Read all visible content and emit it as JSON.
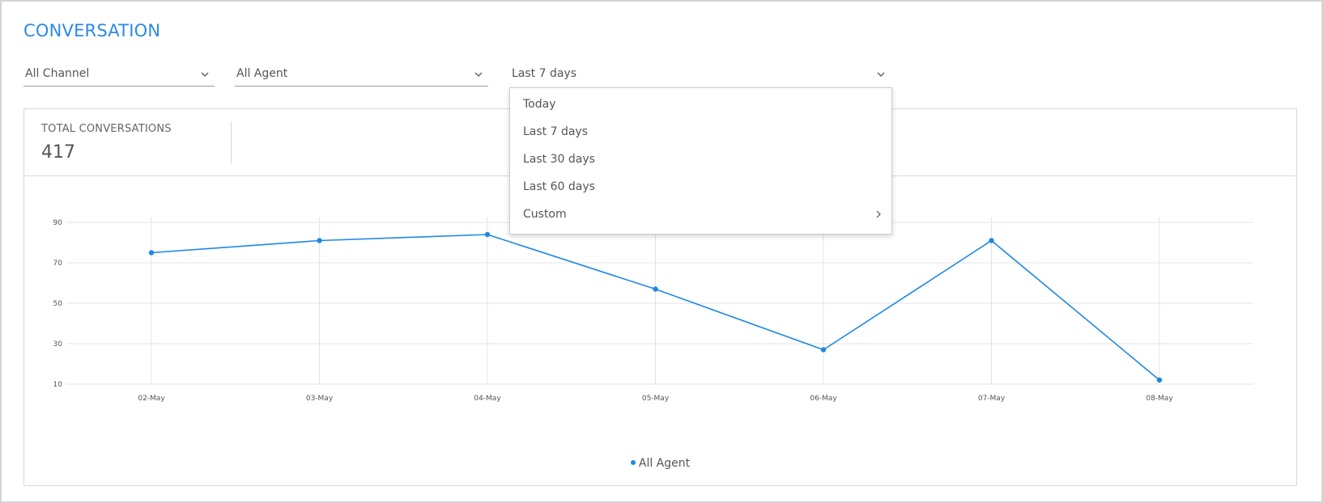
{
  "header": {
    "title": "CONVERSATION"
  },
  "filters": {
    "channel": {
      "value": "All Channel",
      "icon": "chevron-down-icon"
    },
    "agent": {
      "value": "All Agent",
      "icon": "chevron-down-icon"
    },
    "range": {
      "value": "Last 7 days",
      "icon": "chevron-down-icon"
    }
  },
  "dropdown": {
    "items": [
      {
        "label": "Today"
      },
      {
        "label": "Last 7 days"
      },
      {
        "label": "Last 30 days"
      },
      {
        "label": "Last 60 days"
      },
      {
        "label": "Custom",
        "icon": "chevron-right-icon"
      }
    ]
  },
  "stats": {
    "total_label": "TOTAL CONVERSATIONS",
    "total_value": "417"
  },
  "colors": {
    "accent": "#2b8ae6",
    "series": "#1e88e5",
    "grid": "#e3e3e3"
  },
  "chart_data": {
    "type": "line",
    "categories": [
      "02-May",
      "03-May",
      "04-May",
      "05-May",
      "06-May",
      "07-May",
      "08-May"
    ],
    "series": [
      {
        "name": "All Agent",
        "values": [
          75,
          81,
          84,
          57,
          27,
          81,
          12
        ]
      }
    ],
    "yticks": [
      10,
      30,
      50,
      70,
      90
    ],
    "ylim": [
      10,
      90
    ],
    "grid": true,
    "legend": "bottom-center"
  }
}
